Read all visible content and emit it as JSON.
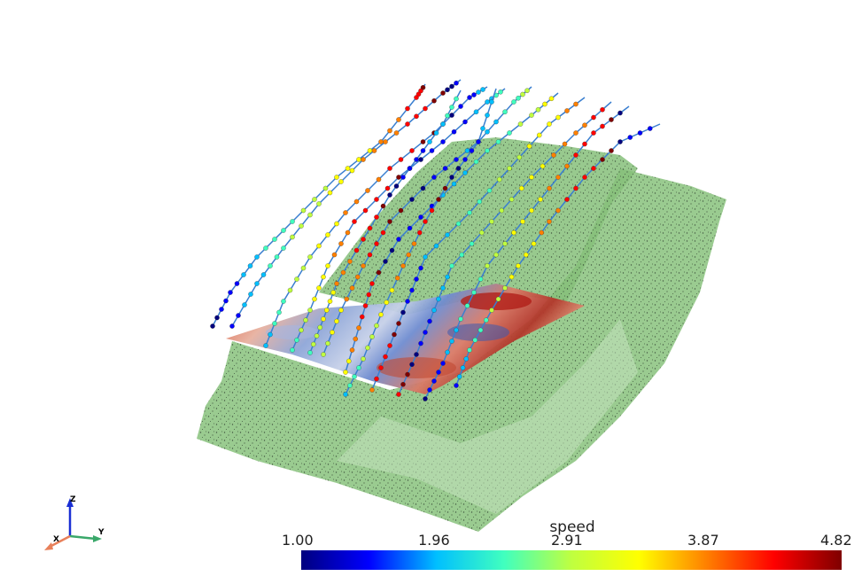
{
  "legend": {
    "title": "speed",
    "ticks": [
      "1.00",
      "1.96",
      "2.91",
      "3.87",
      "4.82"
    ],
    "min": 1.0,
    "max": 4.82,
    "colormap": [
      "#00007f",
      "#0000ff",
      "#00bfff",
      "#40ffbf",
      "#bfff40",
      "#ffff00",
      "#ff8000",
      "#ff0000",
      "#7f0000"
    ]
  },
  "axes": {
    "x_label": "X",
    "y_label": "Y",
    "z_label": "Z",
    "x_color": "#e8805a",
    "y_color": "#3aa86a",
    "z_color": "#1a2fd4"
  },
  "scene": {
    "terrain_color": "#8cc47f",
    "slice_surface": "colored by speed",
    "streamline_count": 17
  }
}
